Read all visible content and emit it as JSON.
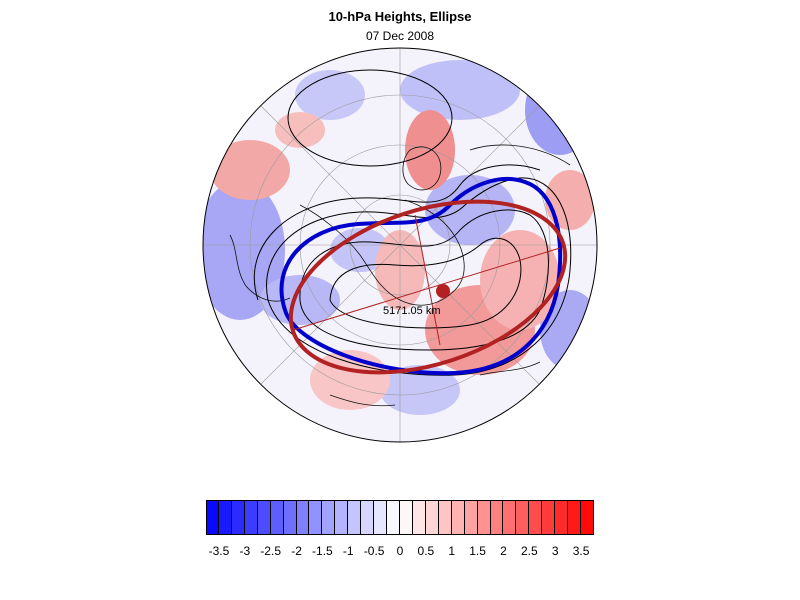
{
  "title": "10-hPa Heights, Ellipse",
  "subtitle": "07 Dec 2008",
  "distance_label": "5171.05 km",
  "colors": {
    "negative": "#0000ff",
    "positive": "#ff0000",
    "observed_vortex": "#0000cc",
    "fitted_ellipse": "#b22222",
    "centroid": "#b22222"
  },
  "icons": {
    "centroid": "filled-circle-marker"
  },
  "colorbar": {
    "min": -3.75,
    "max": 3.75,
    "step": 0.25,
    "tick_labels": [
      "-3.5",
      "-3",
      "-2.5",
      "-2",
      "-1.5",
      "-1",
      "-0.5",
      "0",
      "0.5",
      "1",
      "1.5",
      "2",
      "2.5",
      "3",
      "3.5"
    ]
  }
}
